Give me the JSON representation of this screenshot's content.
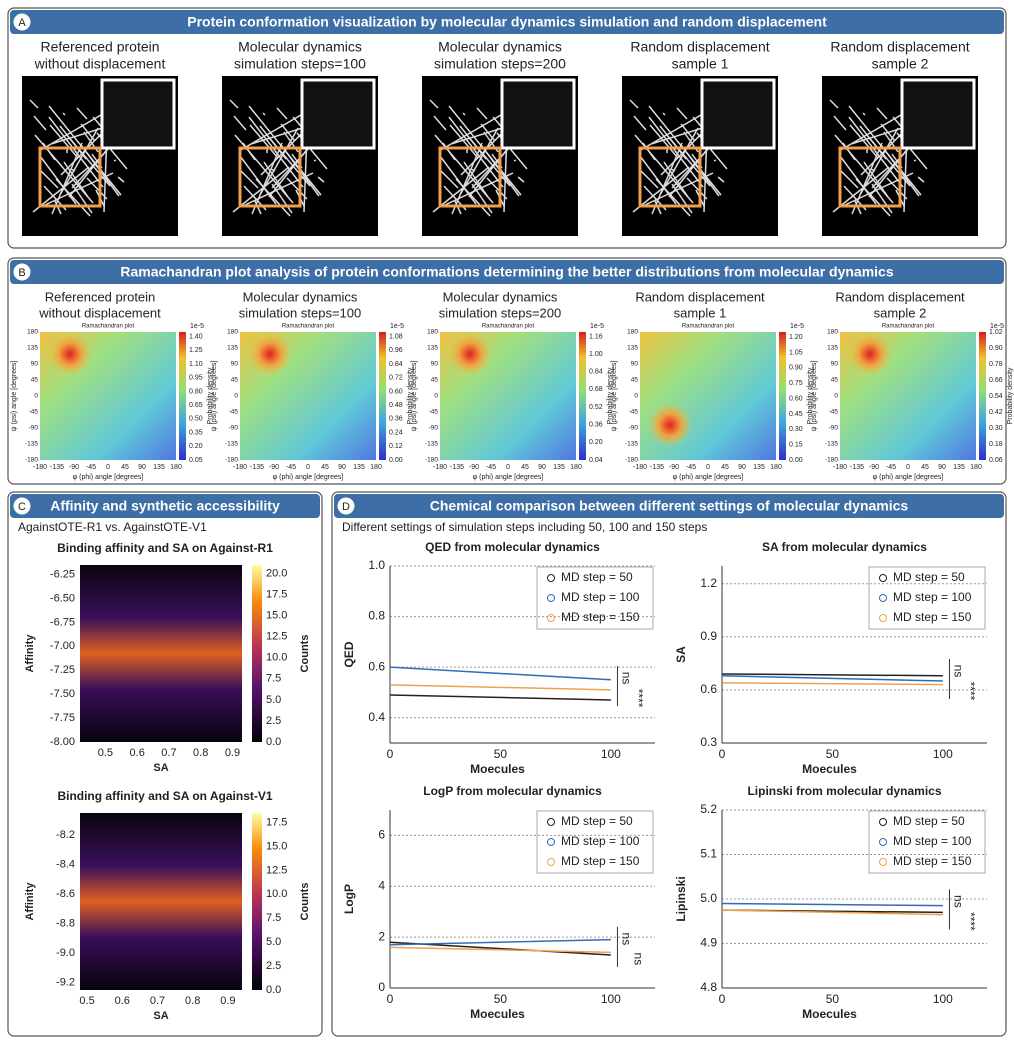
{
  "panel_a": {
    "letter": "A",
    "title": "Protein conformation visualization by molecular dynamics simulation and random displacement",
    "items": [
      {
        "label": [
          "Referenced protein",
          "without displacement"
        ]
      },
      {
        "label": [
          "Molecular dynamics",
          "simulation steps=100"
        ]
      },
      {
        "label": [
          "Molecular dynamics",
          "simulation steps=200"
        ]
      },
      {
        "label": [
          "Random displacement",
          "sample 1"
        ]
      },
      {
        "label": [
          "Random displacement",
          "sample 2"
        ]
      }
    ]
  },
  "panel_b": {
    "letter": "B",
    "title": "Ramachandran plot analysis of protein conformations determining the better distributions from molecular dynamics",
    "plot_title": "Ramachandran plot",
    "x_label": "φ (phi) angle [degrees]",
    "y_label": "ψ (psi) angle [degrees]",
    "colorbar_label": "Probability density",
    "xlim": [
      -180,
      180
    ],
    "ylim": [
      -180,
      180
    ],
    "xticks": [
      -180,
      -135,
      -90,
      -45,
      0,
      45,
      90,
      135,
      180
    ],
    "yticks": [
      -180,
      -135,
      -90,
      -45,
      0,
      45,
      90,
      135,
      180
    ],
    "items": [
      {
        "label": [
          "Referenced protein",
          "without displacement"
        ],
        "scale": "1e-5",
        "clim": [
          0.05,
          1.45
        ],
        "cticks": [
          0.05,
          {
            "value": 0.2,
            "label": "0.20"
          },
          0.35,
          {
            "value": 0.5,
            "label": "0.50"
          },
          0.65,
          {
            "value": 0.8,
            "label": "0.80"
          },
          0.95,
          {
            "value": 1.1,
            "label": "1.10"
          },
          1.25,
          {
            "value": 1.4,
            "label": "1.40"
          }
        ]
      },
      {
        "label": [
          "Molecular dynamics",
          "simulation steps=100"
        ],
        "scale": "1e-5",
        "clim": [
          0,
          1.12
        ],
        "cticks": [
          {
            "value": 0,
            "label": "0.00"
          },
          0.12,
          0.24,
          0.36,
          0.48,
          {
            "value": 0.6,
            "label": "0.60"
          },
          0.72,
          0.84,
          0.96,
          1.08
        ]
      },
      {
        "label": [
          "Molecular dynamics",
          "simulation steps=200"
        ],
        "scale": "1e-5",
        "clim": [
          0.04,
          1.2
        ],
        "cticks": [
          0.04,
          {
            "value": 0.2,
            "label": "0.20"
          },
          0.36,
          0.52,
          0.68,
          0.84,
          {
            "value": 1,
            "label": "1.00"
          },
          1.16
        ]
      },
      {
        "label": [
          "Random displacement",
          "sample 1"
        ],
        "scale": "1e-5",
        "clim": [
          0,
          1.25
        ],
        "cticks": [
          {
            "value": 0,
            "label": "0.00"
          },
          0.15,
          {
            "value": 0.3,
            "label": "0.30"
          },
          0.45,
          {
            "value": 0.6,
            "label": "0.60"
          },
          0.75,
          {
            "value": 0.9,
            "label": "0.90"
          },
          1.05,
          {
            "value": 1.2,
            "label": "1.20"
          }
        ]
      },
      {
        "label": [
          "Random displacement",
          "sample 2"
        ],
        "scale": "1e-5",
        "clim": [
          0.06,
          1.02
        ],
        "cticks": [
          0.06,
          0.18,
          {
            "value": 0.3,
            "label": "0.30"
          },
          0.42,
          0.54,
          0.66,
          0.78,
          {
            "value": 0.9,
            "label": "0.90"
          },
          1.02
        ]
      }
    ]
  },
  "panel_c": {
    "letter": "C",
    "title": "Affinity and synthetic accessibility",
    "subtitle": "AgainstOTE-R1 vs. AgainstOTE-V1",
    "charts": [
      {
        "type": "hexbin",
        "title": "Binding affinity and SA on Against-R1",
        "x_label": "SA",
        "y_label": "Affinity",
        "colorbar_label": "Counts",
        "xlim": [
          0.42,
          0.93
        ],
        "ylim": [
          -8.0,
          -6.15
        ],
        "xticks": [
          0.5,
          0.6,
          0.7,
          0.8,
          0.9
        ],
        "yticks": [
          -6.25,
          {
            "value": -6.5,
            "label": "-6.50"
          },
          -6.75,
          {
            "value": -7,
            "label": "-7.00"
          },
          -7.25,
          {
            "value": -7.5,
            "label": "-7.50"
          },
          -7.75,
          {
            "value": -8,
            "label": "-8.00"
          }
        ],
        "clim": [
          0,
          21
        ],
        "cticks": [
          {
            "value": 0,
            "label": "0.0"
          },
          2.5,
          {
            "value": 5,
            "label": "5.0"
          },
          7.5,
          {
            "value": 10,
            "label": "10.0"
          },
          12.5,
          {
            "value": 15,
            "label": "15.0"
          },
          17.5,
          {
            "value": 20,
            "label": "20.0"
          }
        ]
      },
      {
        "type": "hexbin",
        "title": "Binding affinity and SA on Against-V1",
        "x_label": "SA",
        "y_label": "Affinity",
        "colorbar_label": "Counts",
        "xlim": [
          0.48,
          0.94
        ],
        "ylim": [
          -9.25,
          -8.05
        ],
        "xticks": [
          0.5,
          0.6,
          0.7,
          0.8,
          0.9
        ],
        "yticks": [
          -8.2,
          -8.4,
          -8.6,
          -8.8,
          {
            "value": -9,
            "label": "-9.0"
          },
          -9.2
        ],
        "clim": [
          0,
          18.5
        ],
        "cticks": [
          {
            "value": 0,
            "label": "0.0"
          },
          2.5,
          {
            "value": 5,
            "label": "5.0"
          },
          7.5,
          {
            "value": 10,
            "label": "10.0"
          },
          12.5,
          {
            "value": 15,
            "label": "15.0"
          },
          17.5
        ]
      }
    ]
  },
  "panel_d": {
    "letter": "D",
    "title": "Chemical comparison between different settings of molecular dynamics",
    "subtitle": "Different settings of simulation steps including 50, 100 and 150 steps",
    "charts": [
      {
        "type": "scatter",
        "title": "QED from molecular dynamics",
        "x_label": "Moecules",
        "y_label": "QED",
        "xlim": [
          0,
          120
        ],
        "xticks": [
          0,
          50,
          100
        ],
        "ylim": [
          0.3,
          1.0
        ],
        "yticks": [
          0.4,
          0.6,
          0.8,
          {
            "value": 1,
            "label": "1.0"
          }
        ],
        "grid": true,
        "annotations": [
          "ns",
          "****"
        ],
        "x": [
          0,
          100
        ],
        "series": [
          {
            "name": "MD step = 50",
            "color": "#222222",
            "values": [
              0.49,
              0.47
            ]
          },
          {
            "name": "MD step = 100",
            "color": "#2f6db5",
            "values": [
              0.6,
              0.55
            ]
          },
          {
            "name": "MD step = 150",
            "color": "#f0a050",
            "values": [
              0.53,
              0.51
            ]
          }
        ]
      },
      {
        "type": "scatter",
        "title": "SA from molecular dynamics",
        "x_label": "Moecules",
        "y_label": "SA",
        "xlim": [
          0,
          120
        ],
        "xticks": [
          0,
          50,
          100
        ],
        "ylim": [
          0.3,
          1.3
        ],
        "yticks": [
          0.3,
          0.6,
          0.9,
          1.2
        ],
        "grid": true,
        "annotations": [
          "ns",
          "****"
        ],
        "x": [
          0,
          100
        ],
        "series": [
          {
            "name": "MD step = 50",
            "color": "#222222",
            "values": [
              0.69,
              0.68
            ]
          },
          {
            "name": "MD step = 100",
            "color": "#2f6db5",
            "values": [
              0.68,
              0.65
            ]
          },
          {
            "name": "MD step = 150",
            "color": "#f0a050",
            "values": [
              0.64,
              0.63
            ]
          }
        ]
      },
      {
        "type": "scatter",
        "title": "LogP from molecular dynamics",
        "x_label": "Moecules",
        "y_label": "LogP",
        "xlim": [
          0,
          120
        ],
        "xticks": [
          0,
          50,
          100
        ],
        "ylim": [
          0,
          7
        ],
        "yticks": [
          0,
          2,
          4,
          6
        ],
        "grid": true,
        "annotations": [
          "ns",
          "ns"
        ],
        "x": [
          0,
          100
        ],
        "series": [
          {
            "name": "MD step = 50",
            "color": "#222222",
            "values": [
              1.8,
              1.3
            ]
          },
          {
            "name": "MD step = 100",
            "color": "#2f6db5",
            "values": [
              1.7,
              1.9
            ]
          },
          {
            "name": "MD step = 150",
            "color": "#f0a050",
            "values": [
              1.6,
              1.4
            ]
          }
        ]
      },
      {
        "type": "scatter",
        "title": "Lipinski from molecular dynamics",
        "x_label": "Moecules",
        "y_label": "Lipinski",
        "xlim": [
          0,
          120
        ],
        "xticks": [
          0,
          50,
          100
        ],
        "ylim": [
          4.8,
          5.2
        ],
        "yticks": [
          4.8,
          4.9,
          {
            "value": 5,
            "label": "5.0"
          },
          5.1,
          5.2
        ],
        "grid": true,
        "annotations": [
          "ns",
          "****"
        ],
        "x": [
          0,
          100
        ],
        "series": [
          {
            "name": "MD step = 50",
            "color": "#222222",
            "values": [
              4.975,
              4.97
            ]
          },
          {
            "name": "MD step = 100",
            "color": "#2f6db5",
            "values": [
              4.99,
              4.985
            ]
          },
          {
            "name": "MD step = 150",
            "color": "#f0a050",
            "values": [
              4.975,
              4.965
            ]
          }
        ]
      }
    ]
  }
}
